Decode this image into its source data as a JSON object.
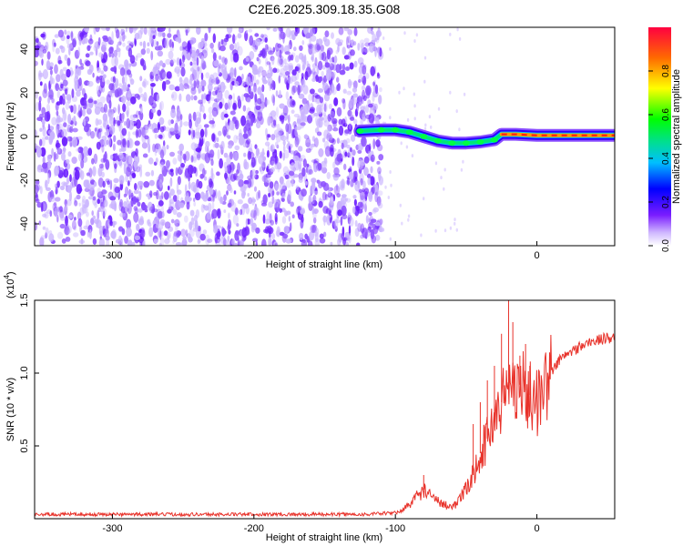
{
  "title": "C2E6.2025.309.18.35.G08",
  "colors": {
    "background": "#ffffff",
    "spectrogram_light": "#c9b3ff",
    "spectrogram_mid": "#8a4dff",
    "spectrogram_dark": "#6a1bff",
    "snr_line": "#e8322a"
  },
  "chart_data": [
    {
      "type": "heatmap",
      "name": "spectrogram",
      "title": "C2E6.2025.309.18.35.G08",
      "xlabel": "Height of straight line (km)",
      "ylabel": "Frequency (Hz)",
      "xlim": [
        -355,
        55
      ],
      "ylim": [
        -50,
        50
      ],
      "xticks": [
        -300,
        -200,
        -100,
        0
      ],
      "xtick_labels": [
        "-300",
        "-200",
        "-100",
        "0"
      ],
      "yticks": [
        -40,
        -20,
        0,
        20,
        40
      ],
      "ytick_labels": [
        "-40",
        "-20",
        "0",
        "20",
        "40"
      ],
      "noise_region": {
        "x": [
          -355,
          -110
        ],
        "y": [
          -50,
          50
        ]
      },
      "ridge": [
        {
          "x": -125,
          "y": 2.5
        },
        {
          "x": -110,
          "y": 3
        },
        {
          "x": -100,
          "y": 3
        },
        {
          "x": -90,
          "y": 2
        },
        {
          "x": -80,
          "y": 0
        },
        {
          "x": -70,
          "y": -2
        },
        {
          "x": -60,
          "y": -3
        },
        {
          "x": -50,
          "y": -3
        },
        {
          "x": -40,
          "y": -2.5
        },
        {
          "x": -30,
          "y": -1.5
        },
        {
          "x": -25,
          "y": 1
        },
        {
          "x": -15,
          "y": 1
        },
        {
          "x": 0,
          "y": 0.5
        },
        {
          "x": 20,
          "y": 0.5
        },
        {
          "x": 55,
          "y": 0.5
        }
      ],
      "colorbar": {
        "label": "Normalized spectral amplitude",
        "range": [
          0,
          1
        ],
        "ticks": [
          0.0,
          0.2,
          0.4,
          0.6,
          0.8
        ],
        "tick_labels": [
          "0.0",
          "0.2",
          "0.4",
          "0.6",
          "0.8"
        ]
      }
    },
    {
      "type": "line",
      "name": "snr",
      "xlabel": "Height of straight line (km)",
      "ylabel": "SNR (10 * v/v)",
      "y_multiplier_label": "(x10",
      "y_multiplier_exponent": "4",
      "xlim": [
        -355,
        55
      ],
      "ylim": [
        0,
        1.5
      ],
      "xticks": [
        -300,
        -200,
        -100,
        0
      ],
      "xtick_labels": [
        "-300",
        "-200",
        "-100",
        "0"
      ],
      "yticks": [
        0.5,
        1.0,
        1.5
      ],
      "ytick_labels": [
        "0.5",
        "1.0",
        "1.5"
      ],
      "series": [
        {
          "name": "SNR",
          "x": [
            -355,
            -300,
            -250,
            -200,
            -150,
            -120,
            -100,
            -95,
            -90,
            -85,
            -80,
            -75,
            -70,
            -65,
            -60,
            -55,
            -50,
            -45,
            -40,
            -35,
            -30,
            -25,
            -20,
            -15,
            -10,
            -5,
            0,
            5,
            10,
            15,
            20,
            30,
            40,
            50,
            55
          ],
          "y": [
            0.03,
            0.03,
            0.03,
            0.03,
            0.03,
            0.03,
            0.04,
            0.06,
            0.1,
            0.15,
            0.2,
            0.15,
            0.12,
            0.1,
            0.08,
            0.12,
            0.2,
            0.3,
            0.45,
            0.55,
            0.7,
            0.8,
            0.9,
            0.95,
            0.9,
            0.85,
            0.8,
            0.9,
            1.0,
            1.08,
            1.12,
            1.18,
            1.22,
            1.24,
            1.25
          ],
          "spikes": [
            {
              "x": -20,
              "y": 1.5
            },
            {
              "x": -17,
              "y": 1.35
            },
            {
              "x": -25,
              "y": 1.27
            },
            {
              "x": -12,
              "y": 1.12
            },
            {
              "x": -30,
              "y": 1.05
            },
            {
              "x": -8,
              "y": 1.2
            },
            {
              "x": -35,
              "y": 0.95
            },
            {
              "x": -40,
              "y": 0.8
            },
            {
              "x": -80,
              "y": 0.3
            },
            {
              "x": -5,
              "y": 1.05
            },
            {
              "x": -45,
              "y": 0.65
            }
          ],
          "noise_amplitude": 0.3
        }
      ]
    }
  ]
}
